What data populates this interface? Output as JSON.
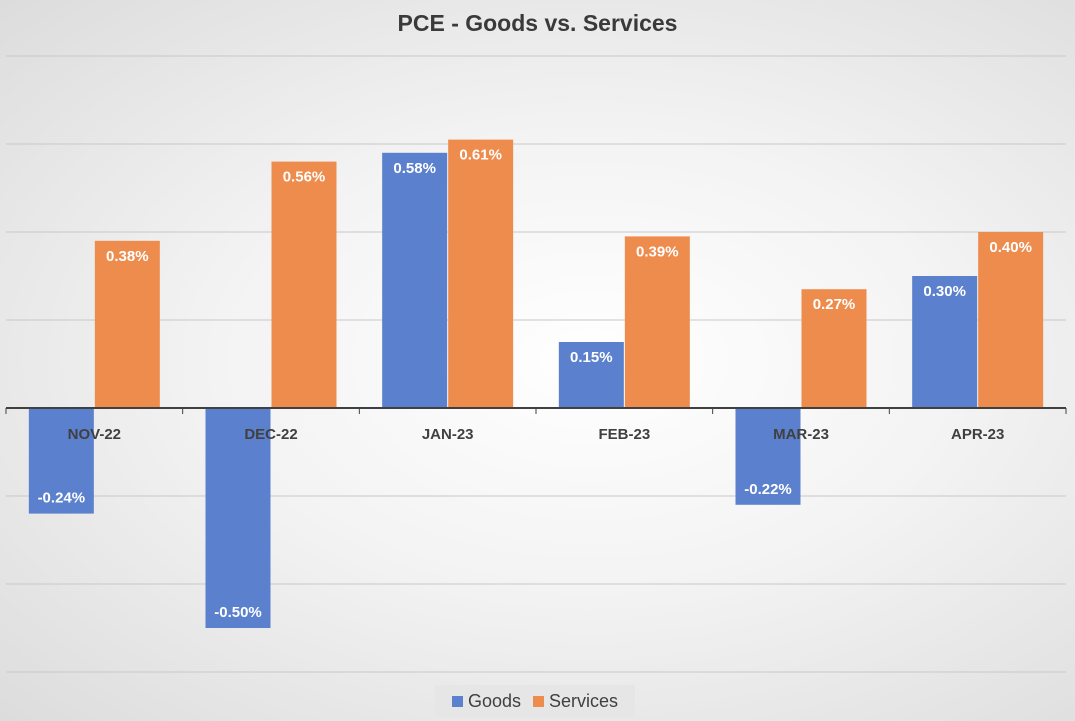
{
  "chart_data": {
    "type": "bar",
    "title": "PCE - Goods vs. Services",
    "categories": [
      "NOV-22",
      "DEC-22",
      "JAN-23",
      "FEB-23",
      "MAR-23",
      "APR-23"
    ],
    "series": [
      {
        "name": "Goods",
        "color": "#5B80CD",
        "values": [
          -0.24,
          -0.5,
          0.58,
          0.15,
          -0.22,
          0.3
        ],
        "labels": [
          "-0.24%",
          "-0.50%",
          "0.58%",
          "0.15%",
          "-0.22%",
          "0.30%"
        ]
      },
      {
        "name": "Services",
        "color": "#EE8C4E",
        "values": [
          0.38,
          0.56,
          0.61,
          0.39,
          0.27,
          0.4
        ],
        "labels": [
          "0.38%",
          "0.56%",
          "0.61%",
          "0.39%",
          "0.27%",
          "0.40%"
        ]
      }
    ],
    "ylim": [
      -0.6,
      0.8
    ],
    "ytick_step": 0.2,
    "grid": true,
    "legend_position": "bottom",
    "xlabel": "",
    "ylabel": ""
  }
}
